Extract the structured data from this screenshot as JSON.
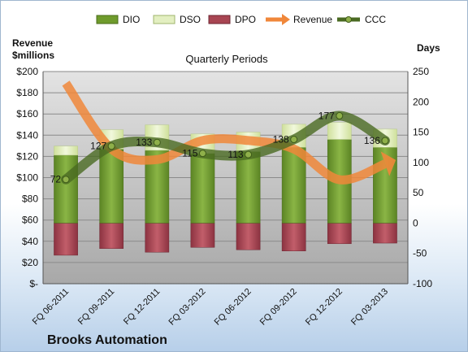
{
  "chart_data": {
    "type": "bar",
    "title": "Quarterly Periods",
    "company": "Brooks Automation",
    "categories": [
      "FQ 06-2011",
      "FQ 09-2011",
      "FQ 12-2011",
      "FQ 03-2012",
      "FQ 06-2012",
      "FQ 09-2012",
      "FQ 12-2012",
      "FQ 03-2013"
    ],
    "left_axis": {
      "title_line1": "Revenue",
      "title_line2": "$millions",
      "ylim": [
        0,
        200
      ],
      "ticks": [
        0,
        20,
        40,
        60,
        80,
        100,
        120,
        140,
        160,
        180,
        200
      ],
      "tick_labels": [
        "$-",
        "$20",
        "$40",
        "$60",
        "$80",
        "$100",
        "$120",
        "$140",
        "$160",
        "$180",
        "$200"
      ]
    },
    "right_axis": {
      "title": "Days",
      "ylim": [
        -100,
        250
      ],
      "ticks": [
        -100,
        -50,
        0,
        50,
        100,
        150,
        200,
        250
      ],
      "tick_labels": [
        "-100",
        "-50",
        "0",
        "50",
        "100",
        "150",
        "200",
        "250"
      ]
    },
    "series": [
      {
        "name": "DIO",
        "axis": "right",
        "kind": "bar",
        "color": "#6f9b2c",
        "values": [
          112,
          122,
          120,
          115,
          118,
          125,
          138,
          125
        ]
      },
      {
        "name": "DSO",
        "axis": "right",
        "kind": "bar-stack",
        "color": "#e3efc1",
        "values": [
          15,
          32,
          42,
          32,
          32,
          38,
          28,
          30
        ]
      },
      {
        "name": "DPO",
        "axis": "right",
        "kind": "bar-negative",
        "color": "#a84552",
        "values": [
          -53,
          -42,
          -48,
          -40,
          -44,
          -46,
          -34,
          -33
        ]
      },
      {
        "name": "Revenue",
        "axis": "left",
        "kind": "line",
        "color": "#f0873a",
        "values": [
          189,
          127,
          117,
          135,
          135,
          127,
          98,
          113
        ]
      },
      {
        "name": "CCC",
        "axis": "right",
        "kind": "line",
        "color": "#4a6a22",
        "values": [
          72,
          127,
          133,
          115,
          113,
          138,
          177,
          136
        ],
        "labels": [
          "72",
          "127",
          "133",
          "115",
          "113",
          "138",
          "177",
          "136"
        ]
      }
    ],
    "legend": {
      "placement": "top",
      "items": [
        "DIO",
        "DSO",
        "DPO",
        "Revenue",
        "CCC"
      ]
    },
    "grid": true
  }
}
